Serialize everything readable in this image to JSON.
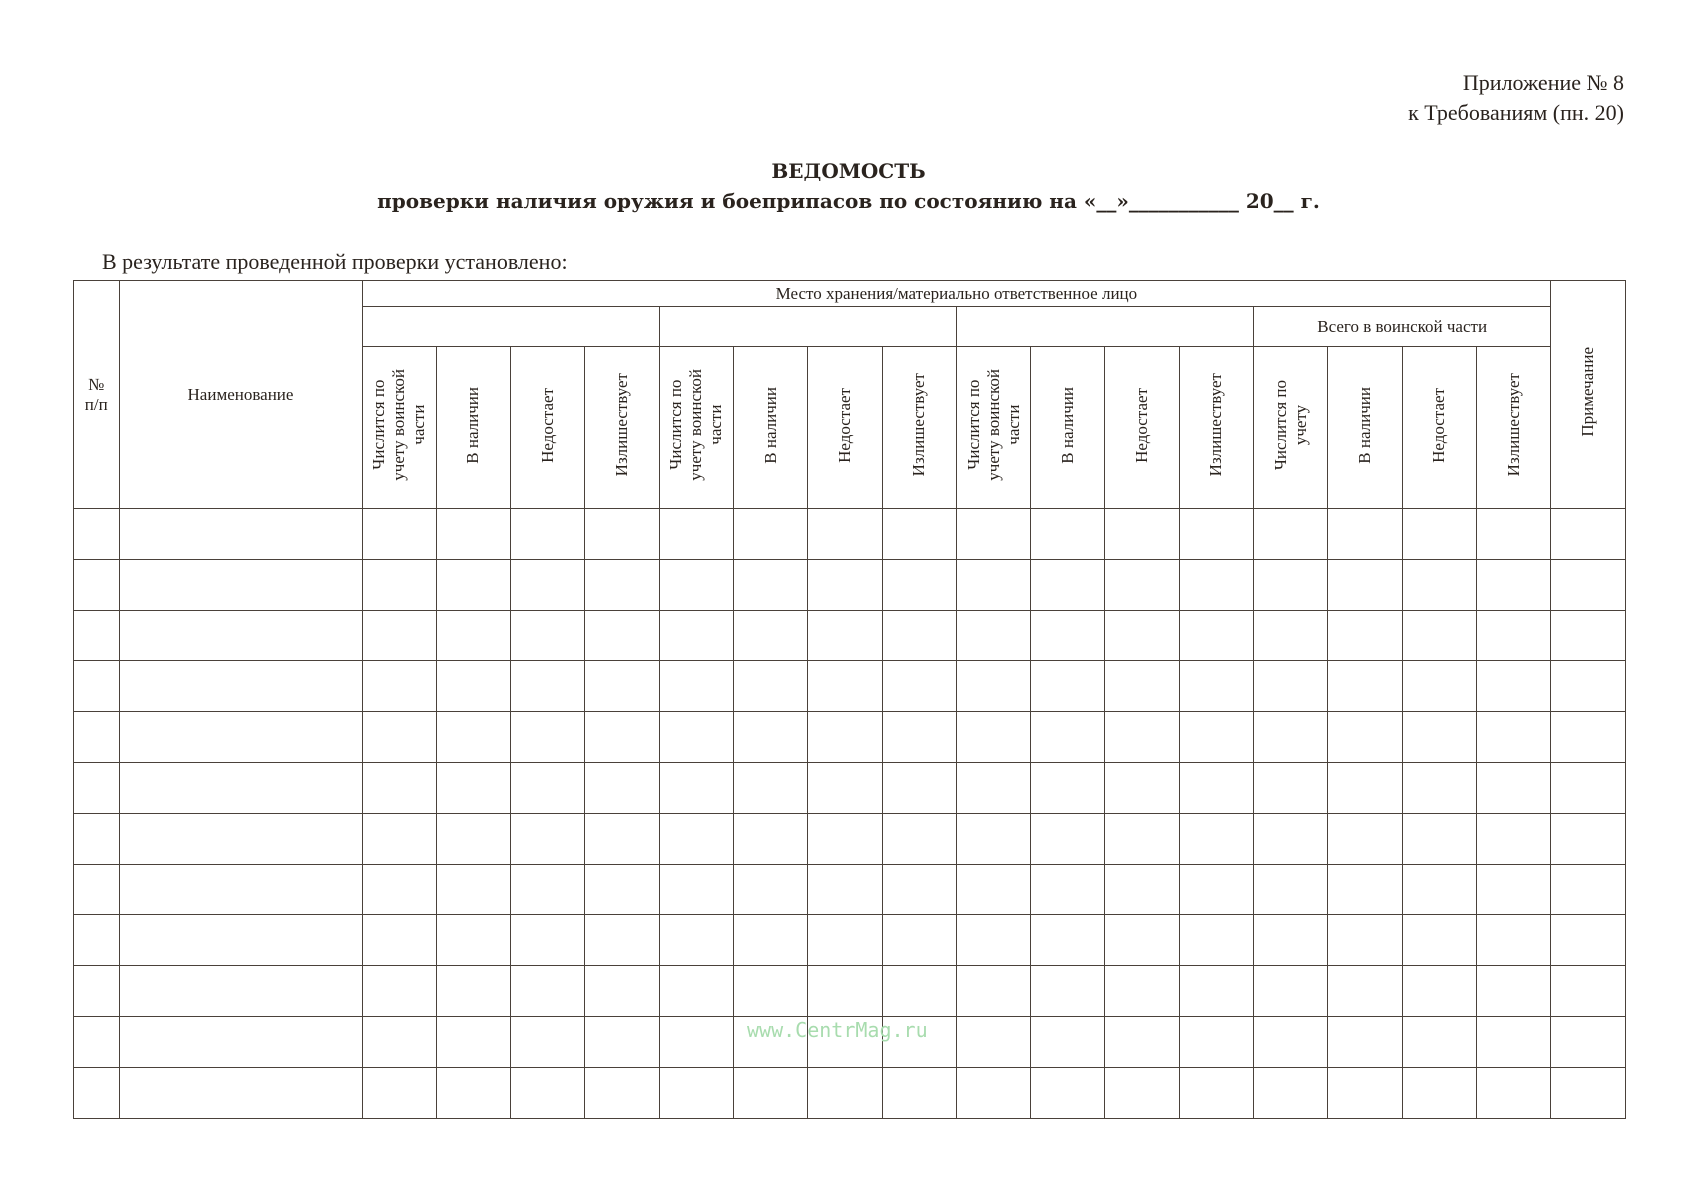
{
  "appendix": {
    "line1": "Приложение № 8",
    "line2": "к Требованиям (пн. 20)"
  },
  "title": {
    "line1": "ВЕДОМОСТЬ",
    "line2": "проверки наличия оружия и боеприпасов по состоянию на «__»___________ 20__ г."
  },
  "intro": "В результате проведенной проверки установлено:",
  "table": {
    "col_number": "№\nп/п",
    "col_name": "Наименование",
    "storage_header": "Место хранения/материально ответственное лицо",
    "total_header": "Всего в воинской части",
    "col_note": "Примечание",
    "group_subcols": [
      "Числится по\nучету воинской\nчасти",
      "В наличии",
      "Недостает",
      "Излишествует"
    ],
    "total_subcols": [
      "Числится по\nучету",
      "В наличии",
      "Недостает",
      "Излишествует"
    ],
    "empty_rows": 12
  },
  "watermark": "www.CentrMag.ru"
}
